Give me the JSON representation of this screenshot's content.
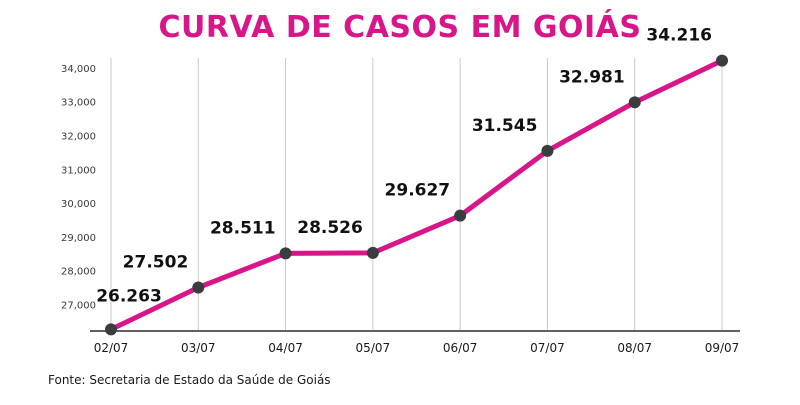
{
  "chart_data": {
    "type": "line",
    "title": "CURVA DE CASOS EM GOIÁS",
    "xlabel": "",
    "ylabel": "",
    "categories": [
      "02/07",
      "03/07",
      "04/07",
      "05/07",
      "06/07",
      "07/07",
      "08/07",
      "09/07"
    ],
    "values": [
      26263,
      27502,
      28511,
      28526,
      29627,
      31545,
      32981,
      34216
    ],
    "data_labels": [
      "26.263",
      "27.502",
      "28.511",
      "28.526",
      "29.627",
      "31.545",
      "32.981",
      "34.216"
    ],
    "yticks": [
      27000,
      28000,
      29000,
      30000,
      31000,
      32000,
      33000,
      34000
    ],
    "ytick_labels": [
      "27,000",
      "28,000",
      "29,000",
      "30,000",
      "31,000",
      "32,000",
      "33,000",
      "34,000"
    ],
    "ylim": [
      26000,
      34200
    ],
    "grid": "vertical",
    "line_color": "#d8168a",
    "marker_color": "#3a3d40",
    "title_color": "#d8168a"
  },
  "source": "Fonte: Secretaria de Estado da Saúde de Goiás"
}
